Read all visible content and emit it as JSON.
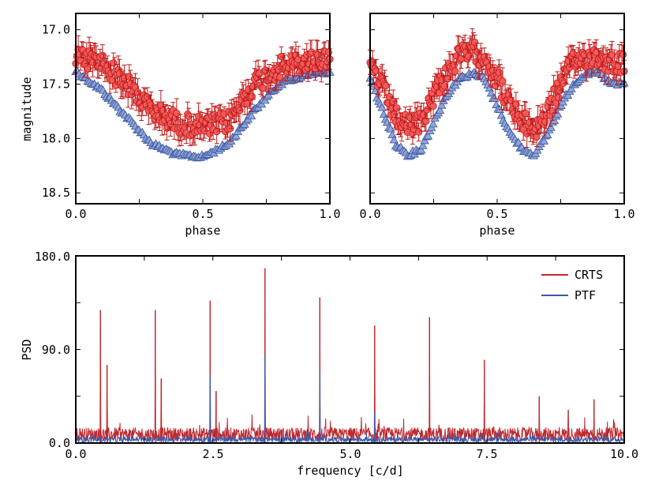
{
  "colors": {
    "crts_fill": "#f25a5a",
    "crts_edge": "#c01818",
    "crts_line": "#c0282d",
    "ptf_fill": "#8fa6d6",
    "ptf_edge": "#3a55a0",
    "ptf_line": "#3e5aa8"
  },
  "chart_data": [
    {
      "id": "phase_left",
      "type": "scatter",
      "xlabel": "phase",
      "ylabel": "magnitude",
      "xlim": [
        0.0,
        1.0
      ],
      "ylim": [
        16.85,
        18.6
      ],
      "y_inverted": true,
      "x_ticks": [
        "0.0",
        "0.5",
        "1.0"
      ],
      "y_ticks": [
        "17.0",
        "17.5",
        "18.0",
        "18.5"
      ],
      "series": [
        {
          "name": "CRTS",
          "marker": "circle",
          "error_bars": true,
          "error_typ": 0.09,
          "x": [
            0.0,
            0.1,
            0.2,
            0.3,
            0.4,
            0.5,
            0.6,
            0.7,
            0.8,
            0.9,
            1.0
          ],
          "y": [
            17.25,
            17.3,
            17.5,
            17.75,
            17.85,
            17.9,
            17.85,
            17.5,
            17.35,
            17.3,
            17.25
          ]
        },
        {
          "name": "PTF",
          "marker": "triangle",
          "error_bars": false,
          "x": [
            0.0,
            0.1,
            0.2,
            0.3,
            0.4,
            0.5,
            0.6,
            0.7,
            0.8,
            0.9,
            1.0
          ],
          "y": [
            17.38,
            17.55,
            17.8,
            18.05,
            18.15,
            18.17,
            18.05,
            17.75,
            17.5,
            17.42,
            17.38
          ]
        }
      ]
    },
    {
      "id": "phase_right",
      "type": "scatter",
      "xlabel": "phase",
      "ylabel": "",
      "xlim": [
        0.0,
        1.0
      ],
      "ylim": [
        16.85,
        18.6
      ],
      "y_inverted": true,
      "x_ticks": [
        "0.0",
        "0.5",
        "1.0"
      ],
      "y_ticks": [],
      "series": [
        {
          "name": "CRTS",
          "marker": "circle",
          "error_bars": true,
          "error_typ": 0.09,
          "x": [
            0.0,
            0.05,
            0.1,
            0.15,
            0.2,
            0.25,
            0.3,
            0.35,
            0.4,
            0.45,
            0.5,
            0.55,
            0.6,
            0.65,
            0.7,
            0.75,
            0.8,
            0.85,
            0.9,
            0.95,
            1.0
          ],
          "y": [
            17.3,
            17.55,
            17.8,
            17.9,
            17.85,
            17.6,
            17.4,
            17.25,
            17.2,
            17.25,
            17.45,
            17.7,
            17.85,
            17.92,
            17.75,
            17.5,
            17.3,
            17.25,
            17.25,
            17.3,
            17.3
          ]
        },
        {
          "name": "PTF",
          "marker": "triangle",
          "error_bars": false,
          "x": [
            0.0,
            0.05,
            0.1,
            0.15,
            0.2,
            0.25,
            0.3,
            0.35,
            0.4,
            0.45,
            0.5,
            0.55,
            0.6,
            0.65,
            0.7,
            0.75,
            0.8,
            0.85,
            0.9,
            0.95,
            1.0
          ],
          "y": [
            17.45,
            17.75,
            18.05,
            18.15,
            18.1,
            17.85,
            17.6,
            17.45,
            17.4,
            17.45,
            17.7,
            17.95,
            18.1,
            18.15,
            17.95,
            17.7,
            17.5,
            17.4,
            17.4,
            17.5,
            17.5
          ]
        }
      ]
    },
    {
      "id": "psd",
      "type": "line",
      "xlabel": "frequency [c/d]",
      "ylabel": "PSD",
      "xlim": [
        0.0,
        10.0
      ],
      "ylim": [
        0.0,
        180.0
      ],
      "x_ticks": [
        "0.0",
        "2.5",
        "5.0",
        "7.5",
        "10.0"
      ],
      "y_ticks": [
        "0.0",
        "90.0",
        "180.0"
      ],
      "legend": "top-right",
      "series": [
        {
          "name": "CRTS",
          "noise_level": 12,
          "peaks": [
            {
              "x": 0.45,
              "y": 128
            },
            {
              "x": 0.57,
              "y": 75
            },
            {
              "x": 1.45,
              "y": 128
            },
            {
              "x": 1.56,
              "y": 62
            },
            {
              "x": 2.45,
              "y": 137
            },
            {
              "x": 2.56,
              "y": 50
            },
            {
              "x": 3.45,
              "y": 168
            },
            {
              "x": 4.45,
              "y": 140
            },
            {
              "x": 5.45,
              "y": 113
            },
            {
              "x": 6.45,
              "y": 121
            },
            {
              "x": 7.45,
              "y": 80
            },
            {
              "x": 8.45,
              "y": 45
            },
            {
              "x": 8.98,
              "y": 32
            },
            {
              "x": 9.45,
              "y": 42
            }
          ]
        },
        {
          "name": "PTF",
          "noise_level": 5,
          "peaks": [
            {
              "x": 2.45,
              "y": 65
            },
            {
              "x": 3.45,
              "y": 85
            },
            {
              "x": 4.45,
              "y": 67
            },
            {
              "x": 5.45,
              "y": 30
            }
          ]
        }
      ]
    }
  ]
}
